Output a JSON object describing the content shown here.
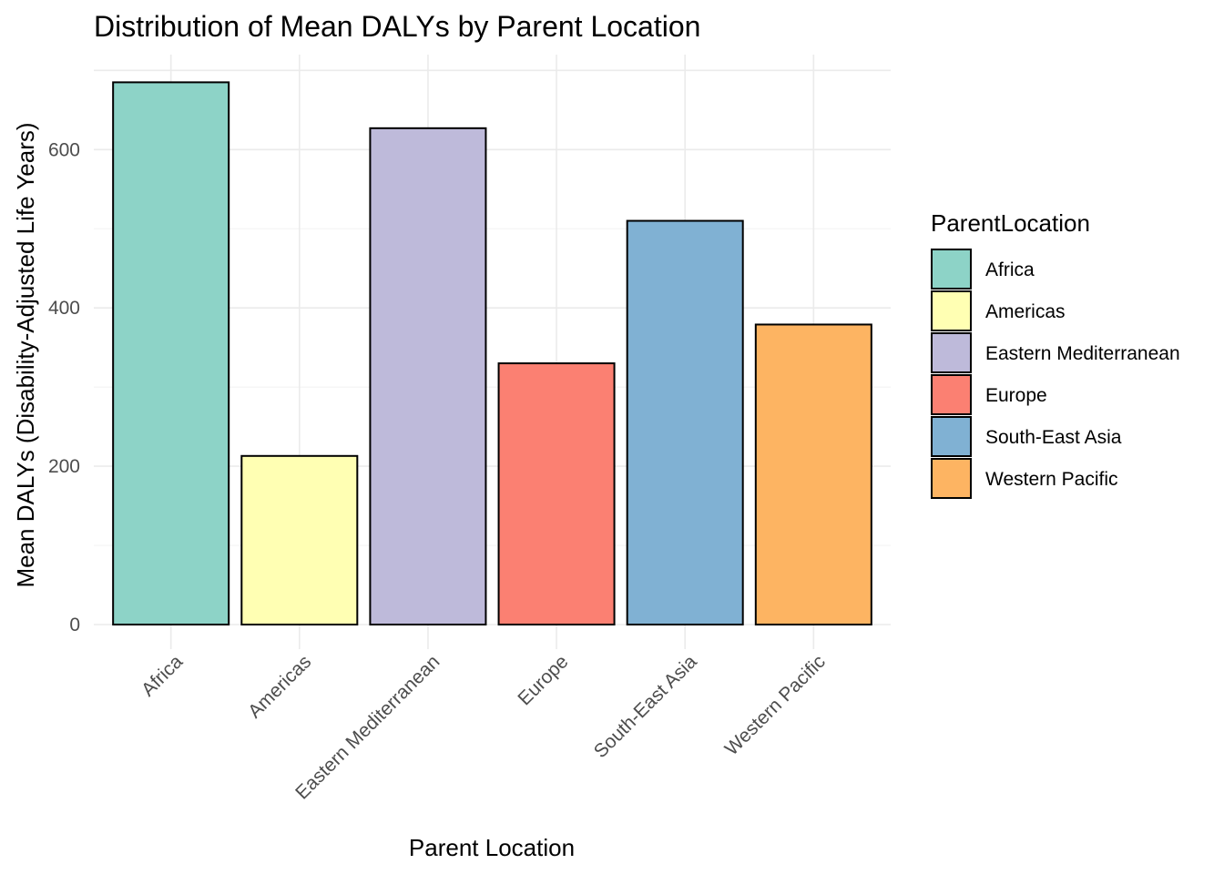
{
  "chart_data": {
    "type": "bar",
    "title": "Distribution of Mean DALYs by Parent Location",
    "xlabel": "Parent Location",
    "ylabel": "Mean DALYs (Disability-Adjusted Life Years)",
    "categories": [
      "Africa",
      "Americas",
      "Eastern Mediterranean",
      "Europe",
      "South-East Asia",
      "Western Pacific"
    ],
    "values": [
      685,
      213,
      627,
      330,
      510,
      379
    ],
    "colors": [
      "#8dd3c7",
      "#ffffb3",
      "#bebada",
      "#fb8072",
      "#80b1d3",
      "#fdb462"
    ],
    "ylim": [
      0,
      700
    ],
    "yticks": [
      0,
      200,
      400,
      600
    ],
    "yticks_labels": [
      "0",
      "200",
      "400",
      "600"
    ],
    "grid": true,
    "legend": {
      "title": "ParentLocation",
      "position": "right",
      "entries": [
        "Africa",
        "Americas",
        "Eastern Mediterranean",
        "Europe",
        "South-East Asia",
        "Western Pacific"
      ]
    }
  }
}
